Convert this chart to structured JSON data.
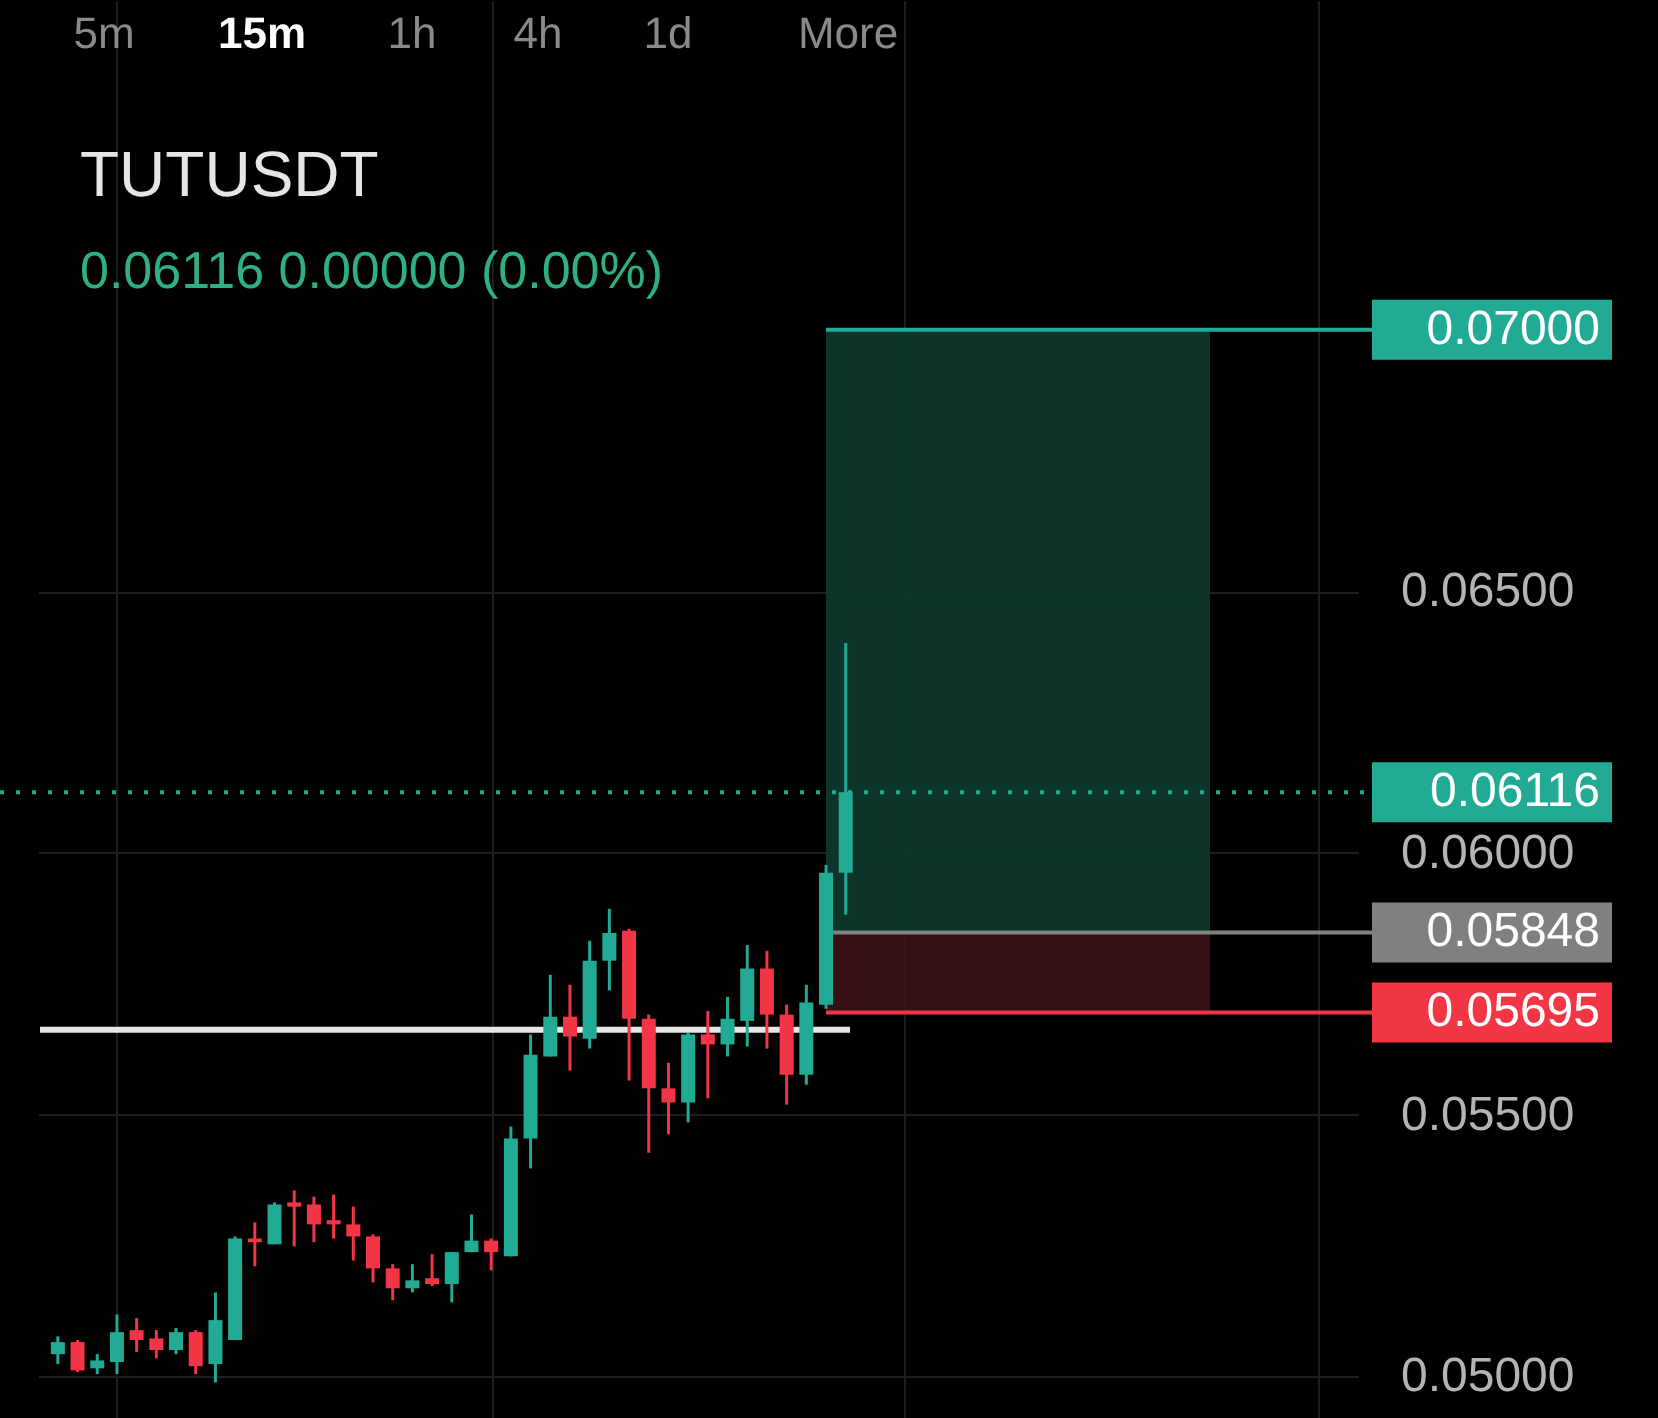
{
  "chart_data": {
    "type": "candlestick",
    "title": "TUTUSDT",
    "subtitle": "0.06116 0.00000 (0.00%)",
    "annotations": [
      "5m",
      "15m",
      "1h",
      "4h",
      "1d",
      "More"
    ],
    "categories": [
      null,
      null,
      null,
      null,
      null,
      null,
      null,
      null,
      null,
      null,
      null,
      null,
      null,
      null,
      null,
      null,
      null,
      null,
      null,
      null,
      null,
      null,
      null,
      null,
      null,
      null,
      null,
      null,
      null,
      null,
      null,
      null,
      null,
      null,
      null,
      null,
      null,
      null,
      null,
      null,
      null,
      null,
      null,
      null,
      null,
      null,
      null,
      null,
      null,
      null,
      null,
      null,
      null,
      null,
      null,
      null,
      null,
      null,
      null,
      null,
      null,
      null,
      null,
      null,
      null,
      null
    ],
    "ohlc": [
      [
        0.05042,
        0.05076,
        0.05023,
        0.05065
      ],
      [
        0.05065,
        0.05069,
        0.05008,
        0.05011
      ],
      [
        0.05015,
        0.05042,
        0.05004,
        0.0503
      ],
      [
        0.05027,
        0.05118,
        0.05004,
        0.05084
      ],
      [
        0.05088,
        0.05111,
        0.05046,
        0.05069
      ],
      [
        0.05072,
        0.05088,
        0.05034,
        0.0505
      ],
      [
        0.0505,
        0.05092,
        0.05042,
        0.05084
      ],
      [
        0.05084,
        0.05088,
        0.05004,
        0.05019
      ],
      [
        0.05023,
        0.0516,
        0.04988,
        0.05107
      ],
      [
        0.05069,
        0.05267,
        0.05069,
        0.05263
      ],
      [
        0.05263,
        0.05294,
        0.0521,
        0.05256
      ],
      [
        0.05252,
        0.05332,
        0.05252,
        0.05328
      ],
      [
        0.05332,
        0.05355,
        0.05248,
        0.05324
      ],
      [
        0.05328,
        0.05343,
        0.05256,
        0.0529
      ],
      [
        0.05298,
        0.05347,
        0.05263,
        0.0529
      ],
      [
        0.0529,
        0.05324,
        0.05221,
        0.05267
      ],
      [
        0.05267,
        0.05271,
        0.05179,
        0.05206
      ],
      [
        0.05206,
        0.05214,
        0.05145,
        0.05168
      ],
      [
        0.05168,
        0.05214,
        0.0516,
        0.05183
      ],
      [
        0.05187,
        0.05233,
        0.05172,
        0.05176
      ],
      [
        0.05176,
        0.05237,
        0.05141,
        0.05237
      ],
      [
        0.05237,
        0.05309,
        0.05237,
        0.05259
      ],
      [
        0.05259,
        0.05263,
        0.05202,
        0.05237
      ],
      [
        0.05229,
        0.05477,
        0.05229,
        0.05454
      ],
      [
        0.05454,
        0.05653,
        0.05397,
        0.05614
      ],
      [
        0.05611,
        0.05767,
        0.05611,
        0.05687
      ],
      [
        0.05687,
        0.05748,
        0.05584,
        0.05649
      ],
      [
        0.05645,
        0.05832,
        0.05626,
        0.05794
      ],
      [
        0.05794,
        0.05893,
        0.05737,
        0.05847
      ],
      [
        0.05851,
        0.05855,
        0.05565,
        0.05683
      ],
      [
        0.05683,
        0.05691,
        0.05427,
        0.0555
      ],
      [
        0.0555,
        0.05599,
        0.05462,
        0.05523
      ],
      [
        0.05523,
        0.05656,
        0.05485,
        0.05653
      ],
      [
        0.05653,
        0.05698,
        0.05531,
        0.05634
      ],
      [
        0.05634,
        0.05725,
        0.05611,
        0.05683
      ],
      [
        0.05679,
        0.05824,
        0.0563,
        0.05779
      ],
      [
        0.05779,
        0.05813,
        0.05626,
        0.05691
      ],
      [
        0.05691,
        0.0571,
        0.05519,
        0.05576
      ],
      [
        0.05576,
        0.05748,
        0.05557,
        0.05714
      ],
      [
        0.0571,
        0.05977,
        0.05702,
        0.05962
      ],
      [
        0.05962,
        0.06401,
        0.05882,
        0.06116
      ],
      null,
      null,
      null,
      null,
      null,
      null,
      null,
      null,
      null,
      null,
      null,
      null,
      null,
      null,
      null,
      null,
      null,
      null,
      null,
      null,
      null,
      null,
      null,
      null,
      null
    ],
    "colors": [
      "#22ab94",
      "#f23645",
      "#22ab94",
      "#22ab94",
      "#f23645",
      "#f23645",
      "#22ab94",
      "#f23645",
      "#22ab94",
      "#22ab94",
      "#f23645",
      "#22ab94",
      "#f23645",
      "#f23645",
      "#f23645",
      "#f23645",
      "#f23645",
      "#f23645",
      "#22ab94",
      "#f23645",
      "#22ab94",
      "#22ab94",
      "#f23645",
      "#22ab94",
      "#22ab94",
      "#22ab94",
      "#f23645",
      "#22ab94",
      "#22ab94",
      "#f23645",
      "#f23645",
      "#f23645",
      "#22ab94",
      "#f23645",
      "#22ab94",
      "#22ab94",
      "#f23645",
      "#f23645",
      "#22ab94",
      "#22ab94",
      "#22ab94",
      null,
      null,
      null,
      null,
      null,
      null,
      null,
      null,
      null,
      null,
      null,
      null,
      null,
      null,
      null,
      null,
      null,
      null,
      null,
      null,
      null,
      null,
      null,
      null,
      null
    ],
    "ylim": [
      0.0492,
      0.0763
    ],
    "yticks": [
      {
        "value": 0.05,
        "label": "0.05000"
      },
      {
        "value": 0.055,
        "label": "0.05500"
      },
      {
        "value": 0.06,
        "label": "0.06000"
      },
      {
        "value": 0.065,
        "label": "0.06500"
      }
    ],
    "grid": true,
    "tick_labels": "y",
    "ref_lines": [
      {
        "axis": "y",
        "value": 0.07,
        "label": "0.07000",
        "color": "#22ab94"
      },
      {
        "axis": "y",
        "value": 0.06116,
        "label": "0.06116",
        "color": "#22ab94",
        "line_style": "dotted"
      },
      {
        "axis": "y",
        "value": 0.05848,
        "label": "0.05848",
        "color": "#808080"
      },
      {
        "axis": "y",
        "value": 0.05695,
        "label": "0.05695",
        "color": "#f23645"
      },
      {
        "axis": "y",
        "value": 0.05662,
        "color": "#e6e6e6"
      }
    ],
    "bands": [
      {
        "axis": "y",
        "from": 0.05848,
        "to": 0.07,
        "color": "#0d3a2e"
      },
      {
        "axis": "y",
        "from": 0.05695,
        "to": 0.05848,
        "color": "#3d1216"
      }
    ]
  }
}
